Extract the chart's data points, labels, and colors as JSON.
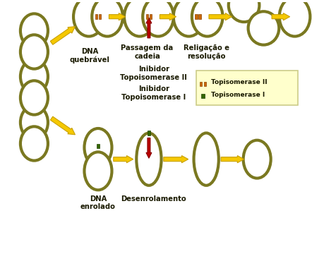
{
  "ring_ec": "#7a7820",
  "ring_lw": 3.0,
  "yc": "#f5c800",
  "yc_edge": "#c8a000",
  "rc": "#bb0000",
  "rc_edge": "#880000",
  "oc": "#cc6600",
  "gc": "#336600",
  "legend_bg": "#ffffcc",
  "legend_ec": "#cccc88",
  "tc": "#1a1a00",
  "labels": {
    "dna_quebr": "DNA\nquebrável",
    "passagem": "Passagem da\ncadeia",
    "religacao": "Religação e\nresolução",
    "inib_topo2": "Inibidor\nTopoisomerase II",
    "inib_topo1": "Inibidor\nTopoisomerase I",
    "dna_enrolado": "DNA\nenrolado",
    "desenrolamento": "Desenrolamento",
    "legend_topo2": "Topisomerase II",
    "legend_topo1": "Topisomerase I"
  },
  "xlim": [
    0,
    9.5
  ],
  "ylim": [
    0,
    8.0
  ]
}
